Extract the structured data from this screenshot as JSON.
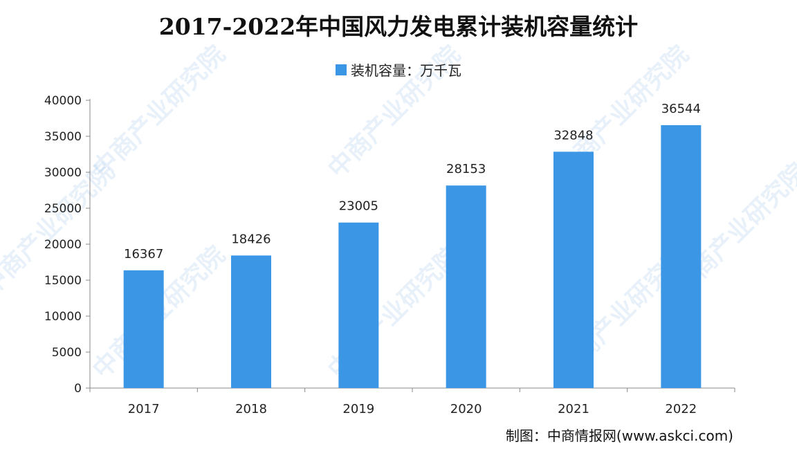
{
  "chart_data": {
    "type": "bar",
    "title": "2017-2022年中国风力发电累计装机容量统计",
    "categories": [
      "2017",
      "2018",
      "2019",
      "2020",
      "2021",
      "2022"
    ],
    "series": [
      {
        "name": "装机容量：万千瓦",
        "values": [
          16367,
          18426,
          23005,
          28153,
          32848,
          36544
        ],
        "color": "#3c96e6"
      }
    ],
    "ylim": [
      0,
      40000
    ],
    "yticks": [
      0,
      5000,
      10000,
      15000,
      20000,
      25000,
      30000,
      35000,
      40000
    ],
    "xlabel": "",
    "ylabel": "",
    "grid": false,
    "legend_position": "top-center",
    "data_labels": true
  },
  "source_text": "制图：中商情报网(www.askci.com)",
  "watermark_text": "中商产业研究院",
  "colors": {
    "bar": "#3c96e6",
    "axis": "#888888",
    "text": "#222222"
  }
}
